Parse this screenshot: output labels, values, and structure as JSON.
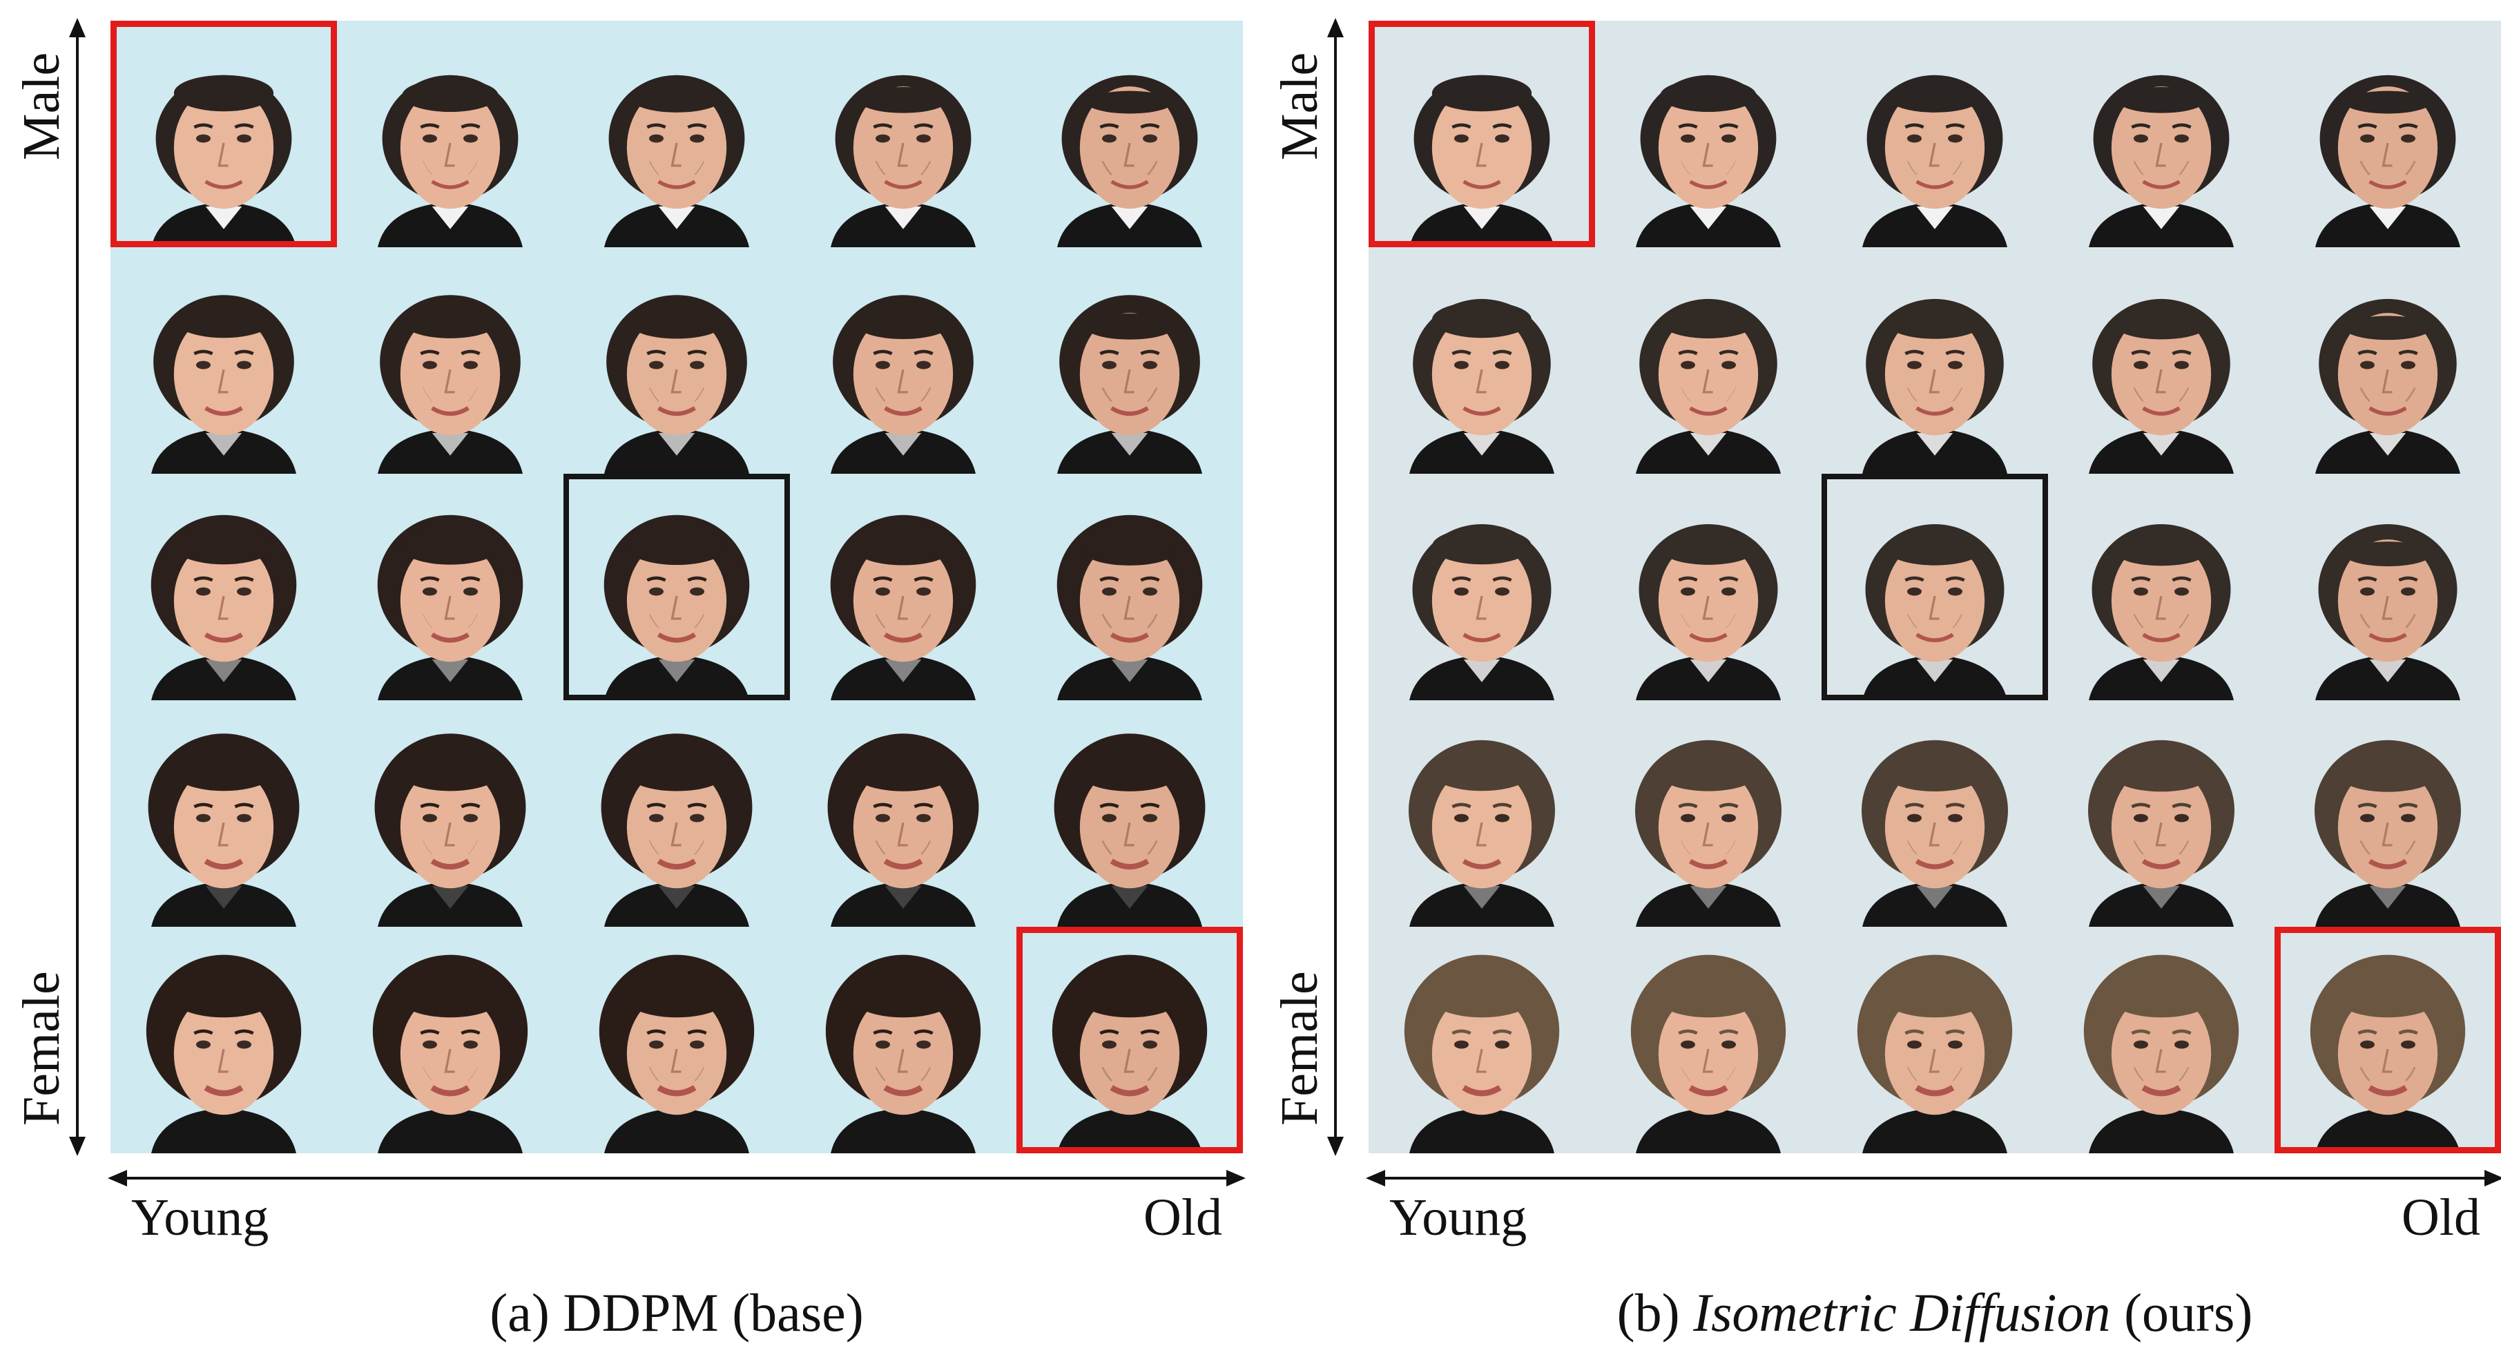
{
  "panels": [
    {
      "id": "a",
      "axis_top": "Male",
      "axis_bottom": "Female",
      "axis_left": "Young",
      "axis_right": "Old",
      "caption_prefix": "(a)  DDPM (base)",
      "caption_italic": "",
      "caption_suffix": "",
      "image_grid": {
        "rows": 5,
        "cols": 5,
        "row_gender": [
          0.0,
          0.25,
          0.5,
          0.8,
          1.0
        ],
        "col_age": [
          0.0,
          0.25,
          0.5,
          0.75,
          1.0
        ],
        "red_frames": [
          [
            0,
            0
          ],
          [
            4,
            4
          ]
        ],
        "black_frames": [
          [
            2,
            2
          ]
        ],
        "background": "#cfeaf0",
        "hair_male": "#2b2320",
        "hair_female": "#2a1d18"
      }
    },
    {
      "id": "b",
      "axis_top": "Male",
      "axis_bottom": "Female",
      "axis_left": "Young",
      "axis_right": "Old",
      "caption_prefix": "(b)  ",
      "caption_italic": "Isometric Diffusion",
      "caption_suffix": " (ours)",
      "image_grid": {
        "rows": 5,
        "cols": 5,
        "row_gender": [
          0.0,
          0.1,
          0.15,
          0.55,
          1.0
        ],
        "col_age": [
          0.0,
          0.25,
          0.5,
          0.75,
          1.0
        ],
        "red_frames": [
          [
            0,
            0
          ],
          [
            4,
            4
          ]
        ],
        "black_frames": [
          [
            2,
            2
          ]
        ],
        "background": "#dbe6ea",
        "hair_male": "#2a2522",
        "hair_female": "#6b5642"
      }
    }
  ],
  "colors": {
    "red_frame": "#e21b1b",
    "black_frame": "#161616",
    "skin": "#e9b79c",
    "suit": "#161616"
  }
}
